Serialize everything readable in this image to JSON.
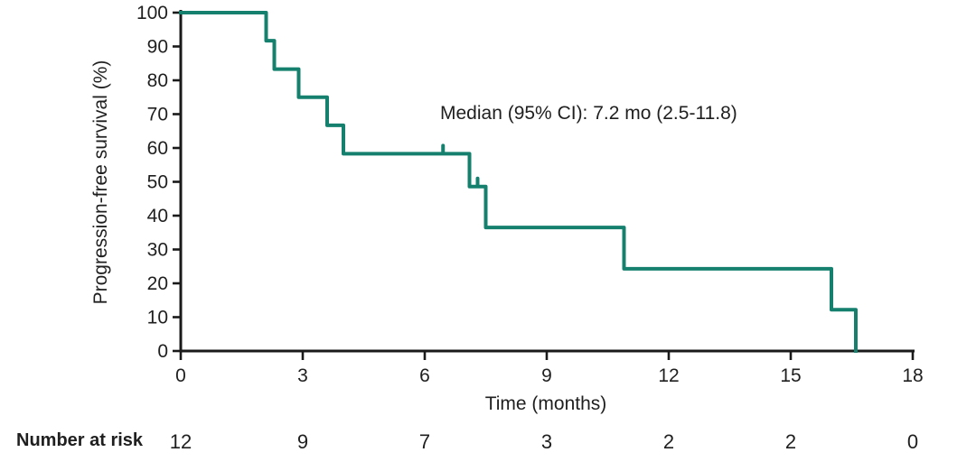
{
  "chart_data": {
    "type": "line",
    "subtype": "kaplan-meier-step",
    "title": "",
    "xlabel": "Time (months)",
    "ylabel": "Progression-free survival (%)",
    "xlim": [
      0,
      18
    ],
    "ylim": [
      0,
      100
    ],
    "x_ticks": [
      0,
      3,
      6,
      9,
      12,
      15,
      18
    ],
    "y_ticks": [
      0,
      10,
      20,
      30,
      40,
      50,
      60,
      70,
      80,
      90,
      100
    ],
    "grid": false,
    "legend": "none",
    "annotation": "Median (95% CI): 7.2 mo (2.5-11.8)",
    "line_color": "#15806e",
    "axis_color": "#1a1a1a",
    "text_color": "#1f1f1f",
    "series": [
      {
        "name": "Progression-free survival",
        "steps": [
          {
            "t": 0,
            "s": 100
          },
          {
            "t": 2.1,
            "s": 91.7
          },
          {
            "t": 2.3,
            "s": 83.3
          },
          {
            "t": 2.9,
            "s": 75.0
          },
          {
            "t": 3.6,
            "s": 66.7
          },
          {
            "t": 4.0,
            "s": 58.3
          },
          {
            "t": 7.1,
            "s": 48.6
          },
          {
            "t": 7.5,
            "s": 36.5
          },
          {
            "t": 10.9,
            "s": 24.3
          },
          {
            "t": 16.0,
            "s": 12.2
          },
          {
            "t": 16.6,
            "s": 0
          }
        ],
        "censor_marks": [
          {
            "t": 6.45,
            "s": 58.3
          },
          {
            "t": 7.3,
            "s": 48.6
          }
        ]
      }
    ],
    "number_at_risk": {
      "label": "Number at risk",
      "times": [
        0,
        3,
        6,
        9,
        12,
        15,
        18
      ],
      "values": [
        12,
        9,
        7,
        3,
        2,
        2,
        0
      ]
    }
  }
}
